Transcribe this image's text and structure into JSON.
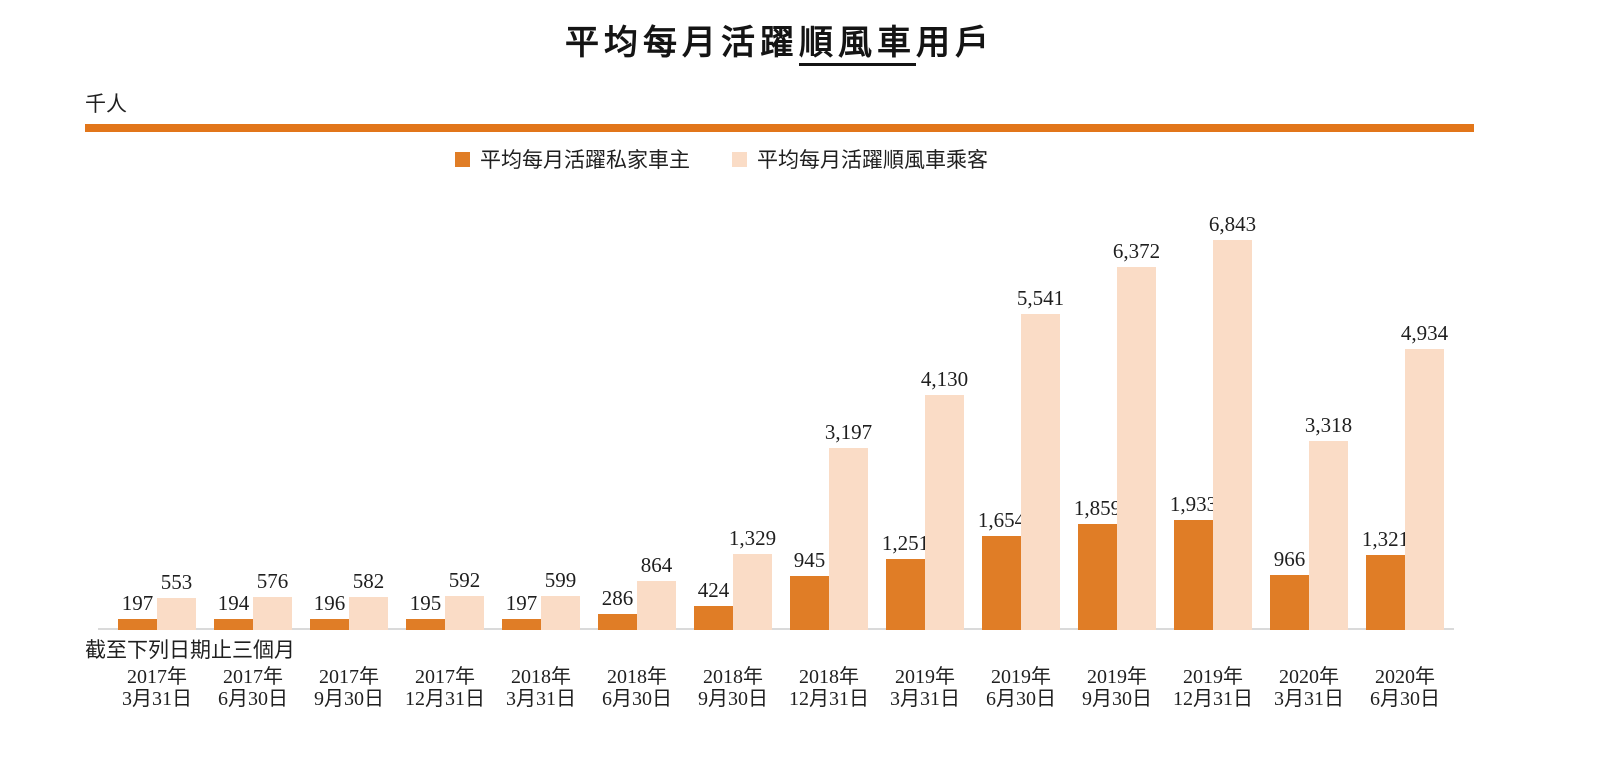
{
  "header": {
    "title_prefix": "平均每月活躍",
    "title_underline": "順風車",
    "title_suffix": "用戶",
    "unit_label": "千人",
    "axis_caption": "截至下列日期止三個月"
  },
  "colors": {
    "owner_series": "#E07D26",
    "passenger_series": "#FADCC6",
    "divider_rule": "#E2761A",
    "axis_line": "#DADADA",
    "text": "#1F1F1F"
  },
  "legend": {
    "items": [
      {
        "label": "平均每月活躍私家車主",
        "color": "#E07D26"
      },
      {
        "label": "平均每月活躍順風車乘客",
        "color": "#FADCC6"
      }
    ]
  },
  "chart_data": {
    "type": "bar",
    "title": "平均每月活躍順風車用戶",
    "ylabel": "千人",
    "xlabel": "截至下列日期止三個月",
    "ylim": [
      0,
      6843
    ],
    "grid": false,
    "legend_position": "top",
    "categories": [
      {
        "line1": "2017年",
        "line2": "3月31日"
      },
      {
        "line1": "2017年",
        "line2": "6月30日"
      },
      {
        "line1": "2017年",
        "line2": "9月30日"
      },
      {
        "line1": "2017年",
        "line2": "12月31日"
      },
      {
        "line1": "2018年",
        "line2": "3月31日"
      },
      {
        "line1": "2018年",
        "line2": "6月30日"
      },
      {
        "line1": "2018年",
        "line2": "9月30日"
      },
      {
        "line1": "2018年",
        "line2": "12月31日"
      },
      {
        "line1": "2019年",
        "line2": "3月31日"
      },
      {
        "line1": "2019年",
        "line2": "6月30日"
      },
      {
        "line1": "2019年",
        "line2": "9月30日"
      },
      {
        "line1": "2019年",
        "line2": "12月31日"
      },
      {
        "line1": "2020年",
        "line2": "3月31日"
      },
      {
        "line1": "2020年",
        "line2": "6月30日"
      }
    ],
    "series": [
      {
        "name": "平均每月活躍私家車主",
        "color": "#E07D26",
        "values": [
          197,
          194,
          196,
          195,
          197,
          286,
          424,
          945,
          1251,
          1654,
          1859,
          1933,
          966,
          1321
        ],
        "labels": [
          "197",
          "194",
          "196",
          "195",
          "197",
          "286",
          "424",
          "945",
          "1,251",
          "1,654",
          "1,859",
          "1,933",
          "966",
          "1,321"
        ]
      },
      {
        "name": "平均每月活躍順風車乘客",
        "color": "#FADCC6",
        "values": [
          553,
          576,
          582,
          592,
          599,
          864,
          1329,
          3197,
          4130,
          5541,
          6372,
          6843,
          3318,
          4934
        ],
        "labels": [
          "553",
          "576",
          "582",
          "592",
          "599",
          "864",
          "1,329",
          "3,197",
          "4,130",
          "5,541",
          "6,372",
          "6,843",
          "3,318",
          "4,934"
        ]
      }
    ]
  }
}
